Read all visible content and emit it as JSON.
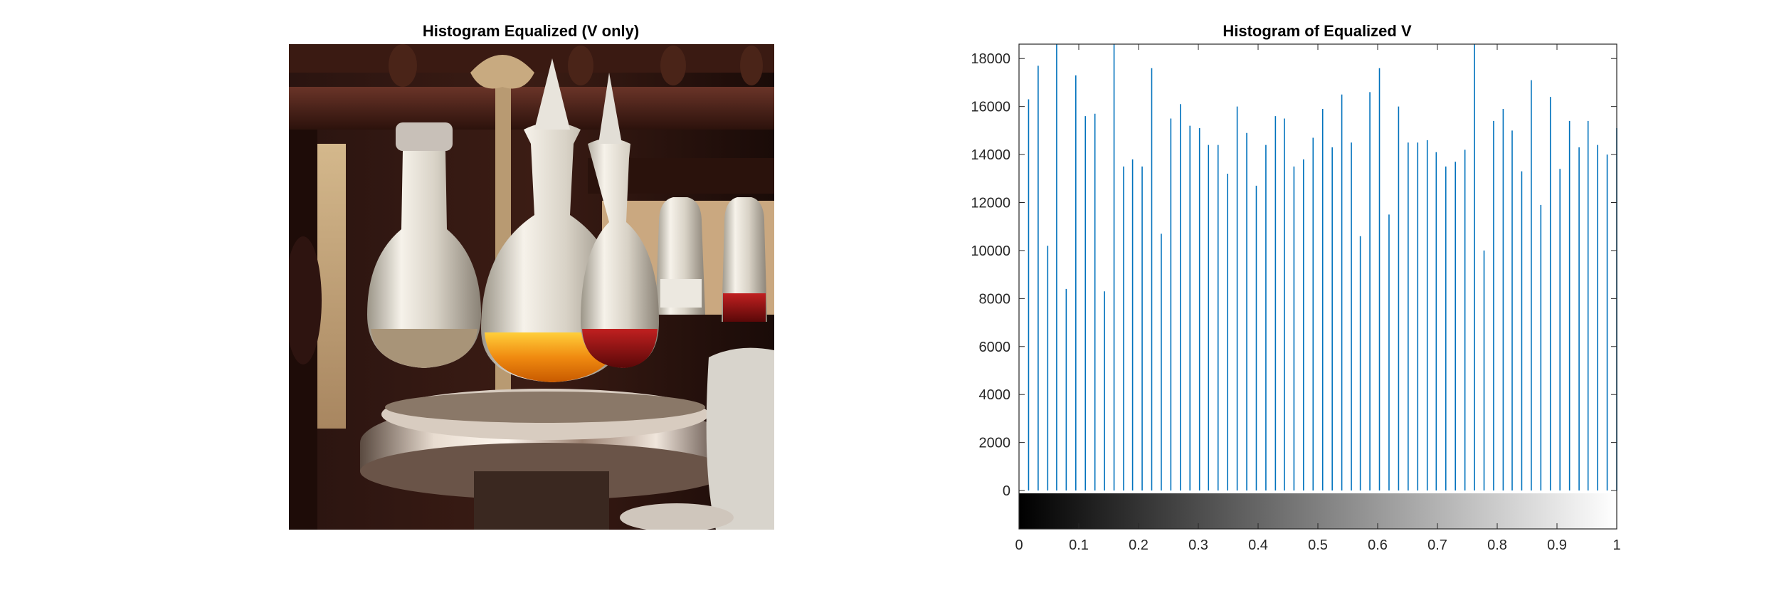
{
  "left_panel": {
    "title": "Histogram Equalized (V only)"
  },
  "chart_data": {
    "type": "bar",
    "title": "Histogram of Equalized V",
    "xlabel": "",
    "ylabel": "",
    "xlim": [
      0,
      1
    ],
    "ylim": [
      -1600,
      18600
    ],
    "grid": false,
    "colorbar": "grayscale from 0 (black) to 1 (white) beneath x-axis",
    "bar_color": "#0072BD",
    "x_ticks": [
      "0",
      "0.1",
      "0.2",
      "0.3",
      "0.4",
      "0.5",
      "0.6",
      "0.7",
      "0.8",
      "0.9",
      "1"
    ],
    "y_ticks": [
      "0",
      "2000",
      "4000",
      "6000",
      "8000",
      "10000",
      "12000",
      "14000",
      "16000",
      "18000"
    ],
    "x": [
      0.016,
      0.032,
      0.048,
      0.063,
      0.079,
      0.095,
      0.111,
      0.127,
      0.143,
      0.159,
      0.175,
      0.19,
      0.206,
      0.222,
      0.238,
      0.254,
      0.27,
      0.286,
      0.302,
      0.317,
      0.333,
      0.349,
      0.365,
      0.381,
      0.397,
      0.413,
      0.429,
      0.444,
      0.46,
      0.476,
      0.492,
      0.508,
      0.524,
      0.54,
      0.556,
      0.571,
      0.587,
      0.603,
      0.619,
      0.635,
      0.651,
      0.667,
      0.683,
      0.698,
      0.714,
      0.73,
      0.746,
      0.762,
      0.778,
      0.794,
      0.81,
      0.825,
      0.841,
      0.857,
      0.873,
      0.889,
      0.905,
      0.921,
      0.937,
      0.952,
      0.968,
      0.984,
      1.0
    ],
    "values": [
      16300,
      17700,
      10200,
      18600,
      8400,
      17300,
      15600,
      15700,
      8300,
      18600,
      13500,
      13800,
      13500,
      17600,
      10700,
      15500,
      16100,
      15200,
      15100,
      14400,
      14400,
      13200,
      16000,
      14900,
      12700,
      14400,
      15600,
      15500,
      13500,
      13800,
      14700,
      15900,
      14300,
      16500,
      14500,
      10600,
      16600,
      17600,
      11500,
      16000,
      14500,
      14500,
      14600,
      14100,
      13500,
      13700,
      14200,
      18600,
      10000,
      15400,
      15900,
      15000,
      13300,
      17100,
      11900,
      16400,
      13400,
      15400,
      14300,
      15400,
      14400,
      14000,
      15100
    ]
  }
}
